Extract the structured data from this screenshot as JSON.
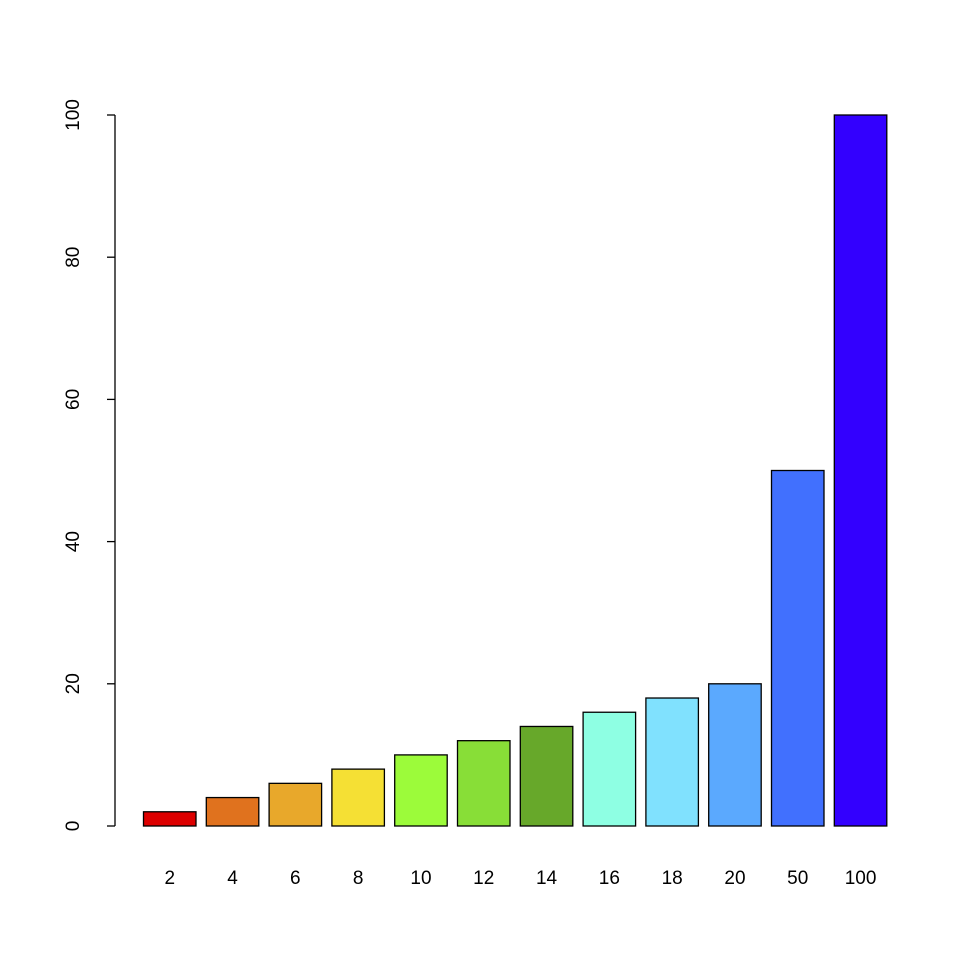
{
  "chart_data": {
    "type": "bar",
    "title": "",
    "xlabel": "",
    "ylabel": "",
    "categories": [
      "2",
      "4",
      "6",
      "8",
      "10",
      "12",
      "14",
      "16",
      "18",
      "20",
      "50",
      "100"
    ],
    "values": [
      2,
      4,
      6,
      8,
      10,
      12,
      14,
      16,
      18,
      20,
      50,
      100
    ],
    "colors": [
      "#dd0000",
      "#e0721e",
      "#e8a82b",
      "#f5e034",
      "#9cfb3a",
      "#88de37",
      "#67a82a",
      "#8effe3",
      "#80e1fe",
      "#5ba9fe",
      "#4170fe",
      "#3300fe"
    ],
    "ylim": [
      0,
      100
    ],
    "yticks": [
      0,
      20,
      40,
      60,
      80,
      100
    ],
    "grid": false,
    "legend": "none"
  }
}
